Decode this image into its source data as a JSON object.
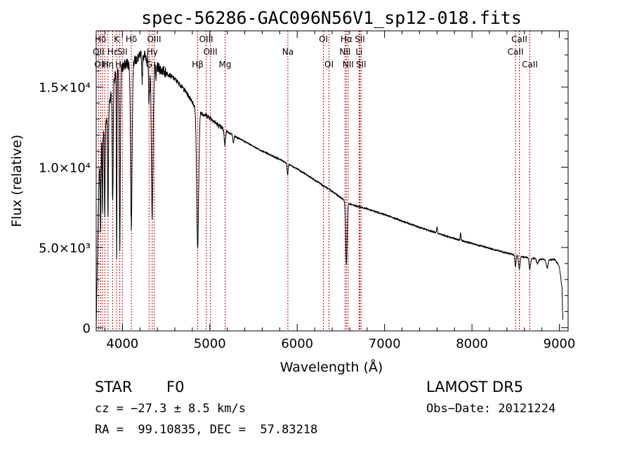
{
  "title": "spec-56286-GAC096N56V1_sp12-018.fits",
  "chart_data": {
    "type": "line",
    "title": "spec-56286-GAC096N56V1_sp12-018.fits",
    "xlabel": "Wavelength (Å)",
    "ylabel": "Flux (relative)",
    "xlim": [
      3700,
      9100
    ],
    "ylim": [
      -200,
      18500
    ],
    "xticks": [
      4000,
      5000,
      6000,
      7000,
      8000,
      9000
    ],
    "yticks": [
      {
        "value": 0,
        "label": "0"
      },
      {
        "value": 5000,
        "label": "5.0×10³"
      },
      {
        "value": 10000,
        "label": "1.0×10⁴"
      },
      {
        "value": 15000,
        "label": "1.5×10⁴"
      }
    ],
    "series": [
      {
        "continuum": [
          [
            3700,
            0
          ],
          [
            3712,
            3500
          ],
          [
            3730,
            9000
          ],
          [
            3760,
            11500
          ],
          [
            3800,
            12500
          ],
          [
            3850,
            14000
          ],
          [
            3900,
            15500
          ],
          [
            3950,
            16000
          ],
          [
            4000,
            16200
          ],
          [
            4050,
            16500
          ],
          [
            4100,
            16300
          ],
          [
            4150,
            16700
          ],
          [
            4200,
            16900
          ],
          [
            4250,
            17000
          ],
          [
            4300,
            16700
          ],
          [
            4350,
            16500
          ],
          [
            4400,
            16200
          ],
          [
            4500,
            15900
          ],
          [
            4600,
            15500
          ],
          [
            4700,
            14900
          ],
          [
            4800,
            14100
          ],
          [
            4850,
            13500
          ],
          [
            4900,
            13400
          ],
          [
            5000,
            13100
          ],
          [
            5100,
            12600
          ],
          [
            5200,
            12200
          ],
          [
            5400,
            11600
          ],
          [
            5600,
            11000
          ],
          [
            5800,
            10500
          ],
          [
            6000,
            9900
          ],
          [
            6200,
            9200
          ],
          [
            6400,
            8500
          ],
          [
            6600,
            7700
          ],
          [
            6800,
            7400
          ],
          [
            7000,
            7050
          ],
          [
            7200,
            6650
          ],
          [
            7400,
            6250
          ],
          [
            7600,
            5900
          ],
          [
            7800,
            5550
          ],
          [
            8000,
            5250
          ],
          [
            8200,
            4950
          ],
          [
            8400,
            4650
          ],
          [
            8600,
            4400
          ],
          [
            8800,
            4250
          ],
          [
            8950,
            4250
          ],
          [
            9000,
            3800
          ],
          [
            9030,
            2500
          ],
          [
            9040,
            500
          ]
        ],
        "absorption": [
          {
            "center": 3750,
            "depth": 5000,
            "width": 5
          },
          {
            "center": 3771,
            "depth": 4500,
            "width": 5
          },
          {
            "center": 3798,
            "depth": 5500,
            "width": 6
          },
          {
            "center": 3835,
            "depth": 6500,
            "width": 7
          },
          {
            "center": 3889,
            "depth": 7500,
            "width": 8
          },
          {
            "center": 3934,
            "depth": 11500,
            "width": 5
          },
          {
            "center": 3970,
            "depth": 11000,
            "width": 9
          },
          {
            "center": 4102,
            "depth": 10000,
            "width": 12
          },
          {
            "center": 4226,
            "depth": 1500,
            "width": 6
          },
          {
            "center": 4305,
            "depth": 2500,
            "width": 10
          },
          {
            "center": 4341,
            "depth": 9500,
            "width": 14
          },
          {
            "center": 4383,
            "depth": 1000,
            "width": 6
          },
          {
            "center": 4861,
            "depth": 8500,
            "width": 16
          },
          {
            "center": 5172,
            "depth": 900,
            "width": 10
          },
          {
            "center": 5270,
            "depth": 500,
            "width": 8
          },
          {
            "center": 5890,
            "depth": 700,
            "width": 8
          },
          {
            "center": 6563,
            "depth": 3900,
            "width": 12
          },
          {
            "center": 7600,
            "depth": -400,
            "width": 6
          },
          {
            "center": 7870,
            "depth": -450,
            "width": 6
          },
          {
            "center": 8498,
            "depth": 700,
            "width": 9
          },
          {
            "center": 8542,
            "depth": 800,
            "width": 12
          },
          {
            "center": 8662,
            "depth": 700,
            "width": 12
          },
          {
            "center": 8750,
            "depth": 300,
            "width": 14
          },
          {
            "center": 8860,
            "depth": 500,
            "width": 15
          }
        ]
      }
    ],
    "lines": [
      {
        "label": "Hδ",
        "wave": 3750,
        "row": 0
      },
      {
        "label": "OII",
        "wave": 3727,
        "row": 1
      },
      {
        "label": "OIII",
        "wave": 3760,
        "row": 2
      },
      {
        "label": "K",
        "wave": 3934,
        "row": 0
      },
      {
        "label": "Hε",
        "wave": 3889,
        "row": 1
      },
      {
        "label": "Hη",
        "wave": 3835,
        "row": 2
      },
      {
        "label": "SII",
        "wave": 4000,
        "row": 1
      },
      {
        "label": "Hι",
        "wave": 3970,
        "row": 2
      },
      {
        "label": "Hδ",
        "wave": 4102,
        "row": 0
      },
      {
        "label": "OIII",
        "wave": 4363,
        "row": 0
      },
      {
        "label": "Hγ",
        "wave": 4341,
        "row": 1
      },
      {
        "label": "G",
        "wave": 4305,
        "row": 2
      },
      {
        "label": "OIII",
        "wave": 4959,
        "row": 0
      },
      {
        "label": "OIII",
        "wave": 5007,
        "row": 1
      },
      {
        "label": "Hβ",
        "wave": 4861,
        "row": 2
      },
      {
        "label": "Mg",
        "wave": 5175,
        "row": 2
      },
      {
        "label": "Na",
        "wave": 5893,
        "row": 1
      },
      {
        "label": "OI",
        "wave": 6300,
        "row": 0
      },
      {
        "label": "OI",
        "wave": 6364,
        "row": 2
      },
      {
        "label": "Hα",
        "wave": 6563,
        "row": 0
      },
      {
        "label": "NII",
        "wave": 6548,
        "row": 1
      },
      {
        "label": "NII",
        "wave": 6583,
        "row": 2
      },
      {
        "label": "SII",
        "wave": 6717,
        "row": 0
      },
      {
        "label": "Li",
        "wave": 6708,
        "row": 1
      },
      {
        "label": "SII",
        "wave": 6731,
        "row": 2
      },
      {
        "label": "CaII",
        "wave": 8542,
        "row": 0
      },
      {
        "label": "CaII",
        "wave": 8498,
        "row": 1
      },
      {
        "label": "CaII",
        "wave": 8662,
        "row": 2
      }
    ],
    "markers": [
      3727,
      3750,
      3771,
      3798,
      3835,
      3889,
      3934,
      3970,
      4000,
      4102,
      4305,
      4341,
      4363,
      4861,
      4959,
      5007,
      5175,
      5893,
      6300,
      6364,
      6548,
      6563,
      6583,
      6708,
      6717,
      6731,
      8498,
      8542,
      8662
    ],
    "grid": false,
    "colors": {
      "spectrum": "#000000",
      "marker": "#cc0000",
      "axis": "#000000"
    }
  },
  "info": {
    "class_label": "STAR",
    "subclass": "F0",
    "survey": "LAMOST DR5",
    "cz": "cz = −27.3 ± 8.5 km/s",
    "obs_date": "Obs−Date: 20121224",
    "coords": "RA =  99.10835, DEC =  57.83218"
  }
}
